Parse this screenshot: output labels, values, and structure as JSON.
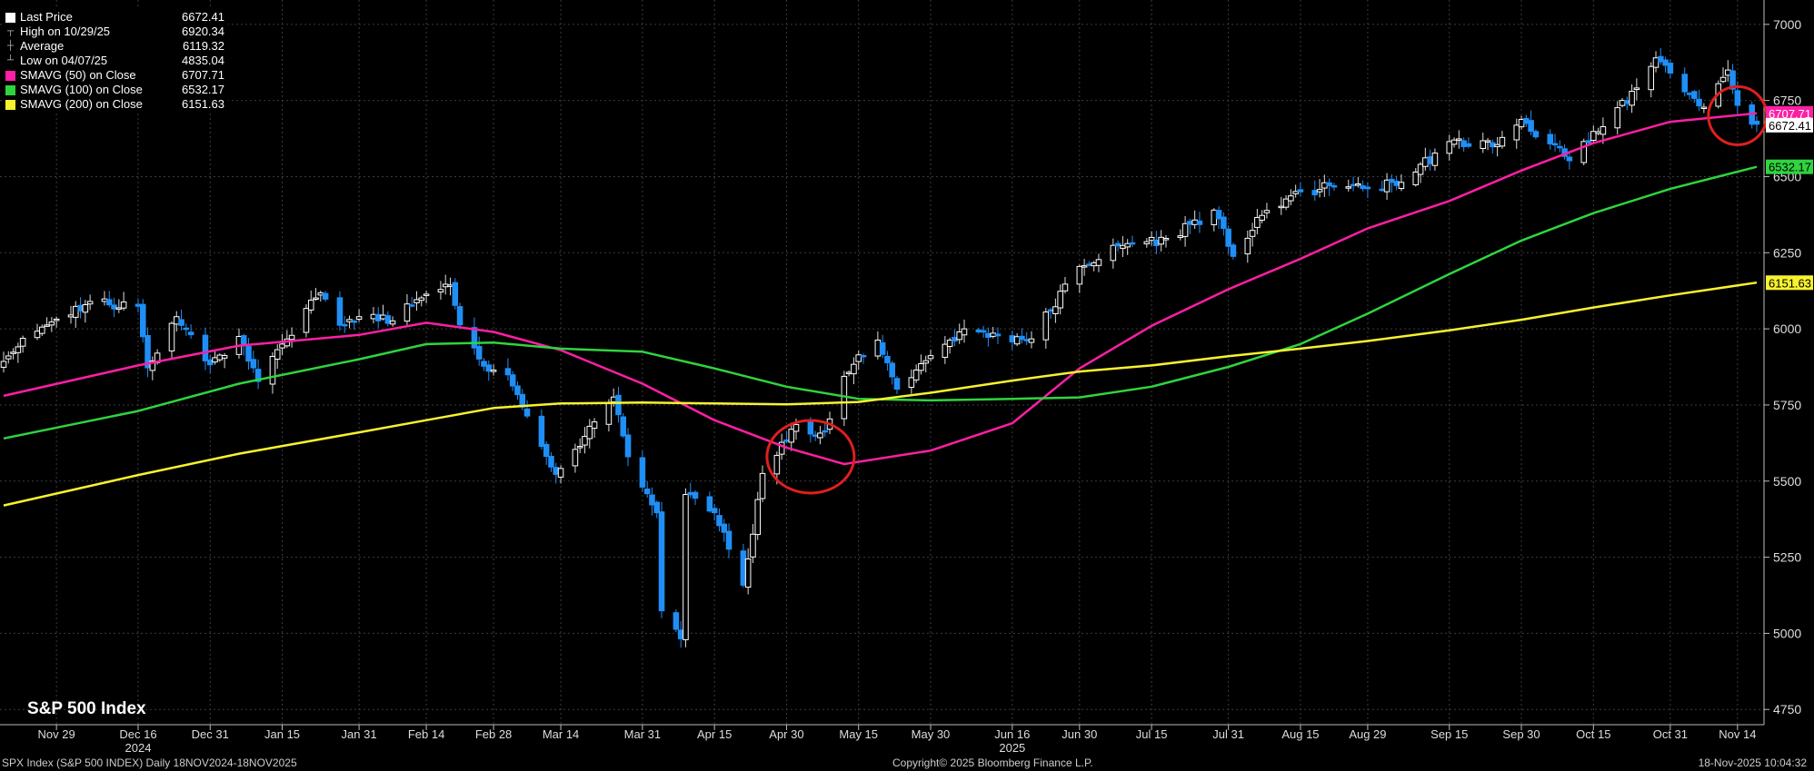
{
  "legend": {
    "items": [
      {
        "label": "Last Price",
        "value": "6672.41",
        "glyph": "white-square-icon"
      },
      {
        "label": "High on 10/29/25",
        "value": "6920.34",
        "glyph": "high-marker-icon"
      },
      {
        "label": "Average",
        "value": "6119.32",
        "glyph": "average-marker-icon"
      },
      {
        "label": "Low on 04/07/25",
        "value": "4835.04",
        "glyph": "low-marker-icon"
      },
      {
        "label": "SMAVG (50)  on Close",
        "value": "6707.71",
        "color": "#ff1fa5"
      },
      {
        "label": "SMAVG (100)  on Close",
        "value": "6532.17",
        "color": "#2fd43f"
      },
      {
        "label": "SMAVG (200)  on Close",
        "value": "6151.63",
        "color": "#f7f22f"
      }
    ]
  },
  "index_title": "S&P 500 Index",
  "footer": {
    "left": "SPX Index (S&P 500 INDEX) Daily 18NOV2024-18NOV2025",
    "center": "Copyright© 2025 Bloomberg Finance L.P.",
    "right": "18-Nov-2025 10:04:32"
  },
  "colors": {
    "background": "#000000",
    "up_candle": "#ffffff",
    "down_candle": "#1f8ff5",
    "grid": "#3c3c3c",
    "annotation_circle": "#e01f1f"
  },
  "chart_data": {
    "type": "candlestick",
    "ylim": [
      4700,
      7080
    ],
    "yticks": [
      4750,
      5000,
      5250,
      5500,
      5750,
      6000,
      6250,
      6500,
      6750,
      7000
    ],
    "xticks": [
      {
        "label": "Nov 29",
        "date": "2024-11-29"
      },
      {
        "label": "Dec 16",
        "date": "2024-12-16"
      },
      {
        "label": "Dec 31",
        "date": "2024-12-31"
      },
      {
        "label": "Jan 15",
        "date": "2025-01-15"
      },
      {
        "label": "Jan 31",
        "date": "2025-01-31"
      },
      {
        "label": "Feb 14",
        "date": "2025-02-14"
      },
      {
        "label": "Feb 28",
        "date": "2025-02-28"
      },
      {
        "label": "Mar 14",
        "date": "2025-03-14"
      },
      {
        "label": "Mar 31",
        "date": "2025-03-31"
      },
      {
        "label": "Apr 15",
        "date": "2025-04-15"
      },
      {
        "label": "Apr 30",
        "date": "2025-04-30"
      },
      {
        "label": "May 15",
        "date": "2025-05-15"
      },
      {
        "label": "May 30",
        "date": "2025-05-30"
      },
      {
        "label": "Jun 16",
        "date": "2025-06-16"
      },
      {
        "label": "Jun 30",
        "date": "2025-06-30"
      },
      {
        "label": "Jul 15",
        "date": "2025-07-15"
      },
      {
        "label": "Jul 31",
        "date": "2025-07-31"
      },
      {
        "label": "Aug 15",
        "date": "2025-08-15"
      },
      {
        "label": "Aug 29",
        "date": "2025-08-29"
      },
      {
        "label": "Sep 15",
        "date": "2025-09-15"
      },
      {
        "label": "Sep 30",
        "date": "2025-09-30"
      },
      {
        "label": "Oct 15",
        "date": "2025-10-15"
      },
      {
        "label": "Oct 31",
        "date": "2025-10-31"
      },
      {
        "label": "Nov 14",
        "date": "2025-11-14"
      }
    ],
    "year_labels": [
      {
        "label": "2024",
        "date": "2024-12-16"
      },
      {
        "label": "2025",
        "date": "2025-06-16"
      }
    ],
    "date_range": [
      "2024-11-18",
      "2025-11-18"
    ],
    "close_anchors": [
      [
        "2024-11-18",
        5893
      ],
      [
        "2024-11-22",
        5969
      ],
      [
        "2024-11-29",
        6032
      ],
      [
        "2024-12-06",
        6090
      ],
      [
        "2024-12-16",
        6074
      ],
      [
        "2024-12-18",
        5872
      ],
      [
        "2024-12-24",
        6040
      ],
      [
        "2024-12-31",
        5882
      ],
      [
        "2025-01-06",
        5975
      ],
      [
        "2025-01-10",
        5827
      ],
      [
        "2025-01-15",
        5950
      ],
      [
        "2025-01-23",
        6118
      ],
      [
        "2025-01-27",
        6012
      ],
      [
        "2025-01-31",
        6040
      ],
      [
        "2025-02-07",
        6026
      ],
      [
        "2025-02-14",
        6114
      ],
      [
        "2025-02-19",
        6144
      ],
      [
        "2025-02-21",
        6013
      ],
      [
        "2025-02-27",
        5861
      ],
      [
        "2025-03-03",
        5849
      ],
      [
        "2025-03-10",
        5614
      ],
      [
        "2025-03-13",
        5522
      ],
      [
        "2025-03-18",
        5614
      ],
      [
        "2025-03-25",
        5776
      ],
      [
        "2025-03-28",
        5580
      ],
      [
        "2025-04-03",
        5396
      ],
      [
        "2025-04-04",
        5074
      ],
      [
        "2025-04-08",
        4982
      ],
      [
        "2025-04-09",
        5456
      ],
      [
        "2025-04-15",
        5396
      ],
      [
        "2025-04-21",
        5158
      ],
      [
        "2025-04-25",
        5525
      ],
      [
        "2025-05-02",
        5686
      ],
      [
        "2025-05-08",
        5663
      ],
      [
        "2025-05-12",
        5844
      ],
      [
        "2025-05-19",
        5963
      ],
      [
        "2025-05-23",
        5802
      ],
      [
        "2025-05-30",
        5912
      ],
      [
        "2025-06-06",
        6000
      ],
      [
        "2025-06-13",
        5977
      ],
      [
        "2025-06-20",
        5967
      ],
      [
        "2025-06-30",
        6205
      ],
      [
        "2025-07-10",
        6280
      ],
      [
        "2025-07-18",
        6297
      ],
      [
        "2025-07-28",
        6390
      ],
      [
        "2025-08-01",
        6238
      ],
      [
        "2025-08-08",
        6389
      ],
      [
        "2025-08-15",
        6450
      ],
      [
        "2025-08-22",
        6466
      ],
      [
        "2025-08-29",
        6460
      ],
      [
        "2025-09-05",
        6481
      ],
      [
        "2025-09-15",
        6615
      ],
      [
        "2025-09-25",
        6605
      ],
      [
        "2025-09-30",
        6688
      ],
      [
        "2025-10-10",
        6552
      ],
      [
        "2025-10-17",
        6664
      ],
      [
        "2025-10-24",
        6791
      ],
      [
        "2025-10-28",
        6890
      ],
      [
        "2025-10-31",
        6840
      ],
      [
        "2025-11-04",
        6771
      ],
      [
        "2025-11-07",
        6728
      ],
      [
        "2025-11-12",
        6850
      ],
      [
        "2025-11-14",
        6734
      ],
      [
        "2025-11-17",
        6672
      ],
      [
        "2025-11-18",
        6672
      ]
    ],
    "series": [
      {
        "name": "SMAVG (50)  on Close",
        "color": "#ff1fa5",
        "points": [
          [
            "2024-11-18",
            5780
          ],
          [
            "2024-12-16",
            5880
          ],
          [
            "2025-01-06",
            5945
          ],
          [
            "2025-01-31",
            5980
          ],
          [
            "2025-02-14",
            6020
          ],
          [
            "2025-02-28",
            5990
          ],
          [
            "2025-03-14",
            5930
          ],
          [
            "2025-03-31",
            5820
          ],
          [
            "2025-04-15",
            5700
          ],
          [
            "2025-04-30",
            5610
          ],
          [
            "2025-05-12",
            5556
          ],
          [
            "2025-05-30",
            5600
          ],
          [
            "2025-06-16",
            5690
          ],
          [
            "2025-06-30",
            5870
          ],
          [
            "2025-07-15",
            6010
          ],
          [
            "2025-07-31",
            6130
          ],
          [
            "2025-08-15",
            6230
          ],
          [
            "2025-08-29",
            6330
          ],
          [
            "2025-09-15",
            6420
          ],
          [
            "2025-09-30",
            6520
          ],
          [
            "2025-10-15",
            6610
          ],
          [
            "2025-10-31",
            6680
          ],
          [
            "2025-11-18",
            6708
          ]
        ]
      },
      {
        "name": "SMAVG (100)  on Close",
        "color": "#2fd43f",
        "points": [
          [
            "2024-11-18",
            5640
          ],
          [
            "2024-12-16",
            5730
          ],
          [
            "2025-01-06",
            5820
          ],
          [
            "2025-01-31",
            5900
          ],
          [
            "2025-02-14",
            5950
          ],
          [
            "2025-02-28",
            5955
          ],
          [
            "2025-03-14",
            5935
          ],
          [
            "2025-03-31",
            5925
          ],
          [
            "2025-04-15",
            5870
          ],
          [
            "2025-04-30",
            5810
          ],
          [
            "2025-05-15",
            5770
          ],
          [
            "2025-05-30",
            5765
          ],
          [
            "2025-06-16",
            5770
          ],
          [
            "2025-06-30",
            5775
          ],
          [
            "2025-07-15",
            5810
          ],
          [
            "2025-07-31",
            5875
          ],
          [
            "2025-08-15",
            5950
          ],
          [
            "2025-08-29",
            6050
          ],
          [
            "2025-09-15",
            6180
          ],
          [
            "2025-09-30",
            6290
          ],
          [
            "2025-10-15",
            6380
          ],
          [
            "2025-10-31",
            6460
          ],
          [
            "2025-11-18",
            6532
          ]
        ]
      },
      {
        "name": "SMAVG (200)  on Close",
        "color": "#f7f22f",
        "points": [
          [
            "2024-11-18",
            5420
          ],
          [
            "2024-12-16",
            5520
          ],
          [
            "2025-01-06",
            5590
          ],
          [
            "2025-01-31",
            5660
          ],
          [
            "2025-02-14",
            5700
          ],
          [
            "2025-02-28",
            5740
          ],
          [
            "2025-03-14",
            5755
          ],
          [
            "2025-03-31",
            5758
          ],
          [
            "2025-04-15",
            5755
          ],
          [
            "2025-04-30",
            5752
          ],
          [
            "2025-05-15",
            5760
          ],
          [
            "2025-05-30",
            5790
          ],
          [
            "2025-06-16",
            5830
          ],
          [
            "2025-06-30",
            5860
          ],
          [
            "2025-07-15",
            5880
          ],
          [
            "2025-07-31",
            5910
          ],
          [
            "2025-08-15",
            5935
          ],
          [
            "2025-08-29",
            5960
          ],
          [
            "2025-09-15",
            5995
          ],
          [
            "2025-09-30",
            6030
          ],
          [
            "2025-10-15",
            6070
          ],
          [
            "2025-10-31",
            6110
          ],
          [
            "2025-11-18",
            6152
          ]
        ]
      }
    ],
    "price_tags": [
      {
        "value": 6707.71,
        "label": "6707.71",
        "color": "#ff1fa5",
        "text_color": "#ffffff"
      },
      {
        "value": 6672.41,
        "label": "6672.41",
        "color": "#ffffff",
        "text_color": "#000000"
      },
      {
        "value": 6532.17,
        "label": "6532.17",
        "color": "#2fd43f",
        "text_color": "#000000"
      },
      {
        "value": 6151.63,
        "label": "6151.63",
        "color": "#f7f22f",
        "text_color": "#000000"
      }
    ],
    "annotations": [
      {
        "type": "circle",
        "date": "2025-05-05",
        "value": 5580
      },
      {
        "type": "circle",
        "date": "2025-11-14",
        "value": 6700
      }
    ]
  }
}
